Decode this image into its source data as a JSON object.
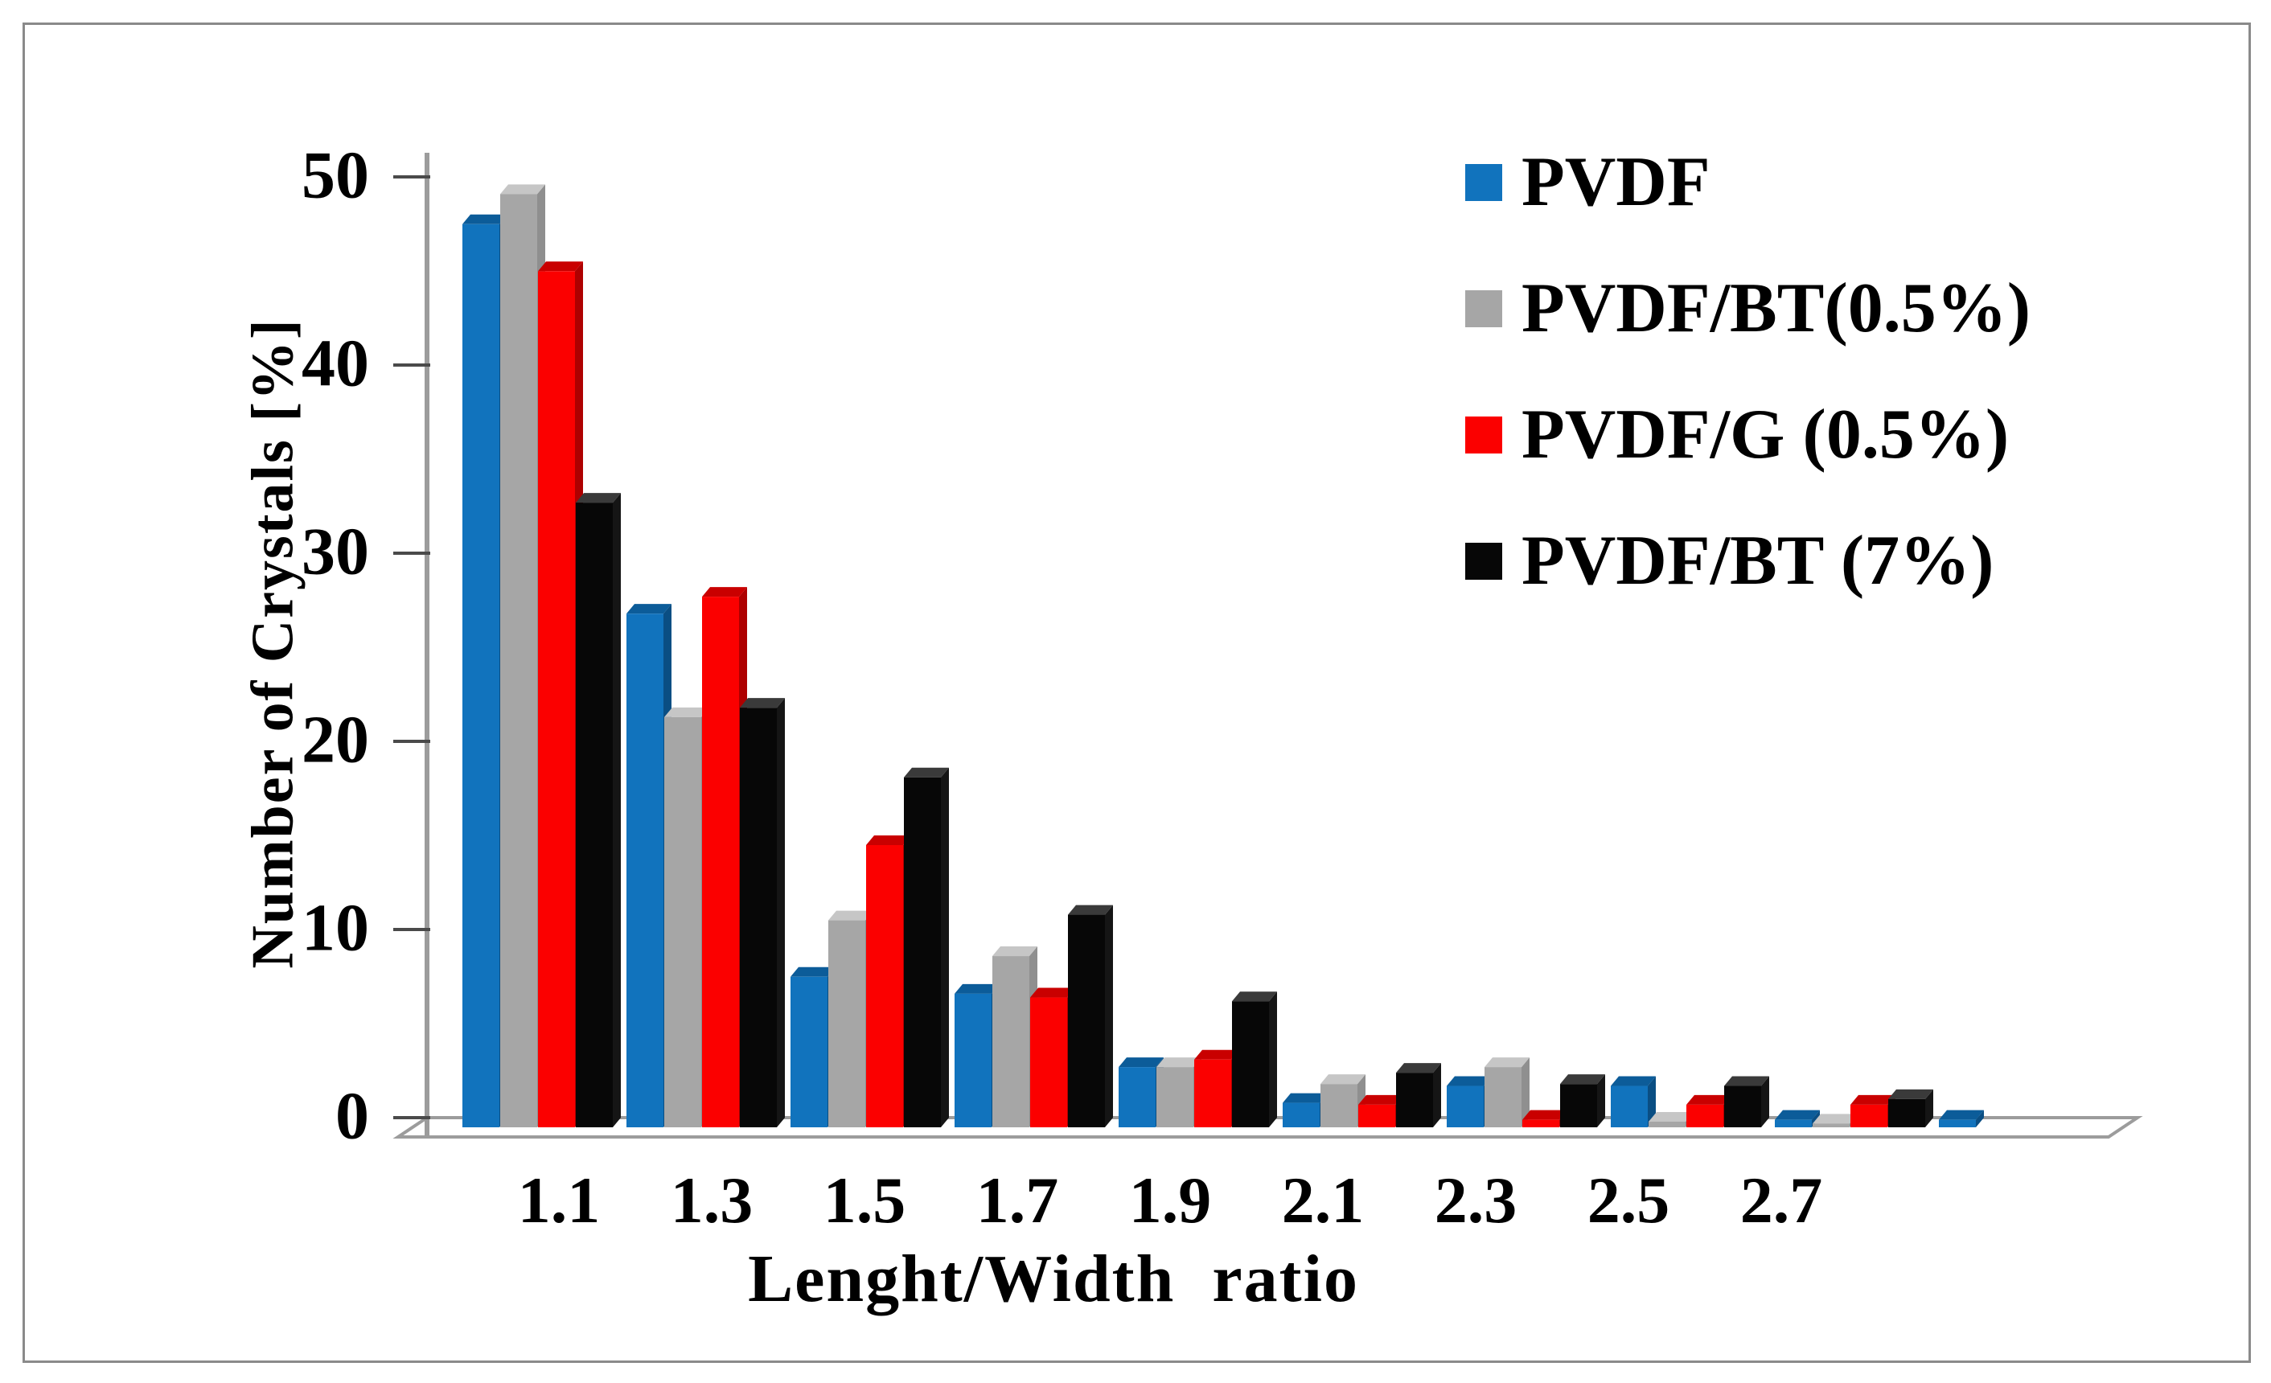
{
  "figure": {
    "y_axis_title": "Number of Crystals [%]",
    "x_axis_title": "Lenght/Width  ratio"
  },
  "chart_data": {
    "type": "bar",
    "title": "",
    "xlabel": "Lenght/Width  ratio",
    "ylabel": "Number of Crystals [%]",
    "categories": [
      "1.1",
      "1.3",
      "1.5",
      "1.7",
      "1.9",
      "2.1",
      "2.3",
      "2.5",
      "2.7",
      ""
    ],
    "ylim": [
      0,
      50
    ],
    "yticks": [
      0,
      10,
      20,
      30,
      40,
      50
    ],
    "grid": false,
    "legend_position": "top-right",
    "style": "3d-column",
    "axis_color": "#9c9c9c",
    "tick_color": "#4a4a4a",
    "series": [
      {
        "name": "PVDF",
        "color": "#1173BD",
        "cap_color": "#0C5C99",
        "side_color": "#0A4E83",
        "values": [
          48.0,
          27.3,
          8.0,
          7.1,
          3.2,
          1.3,
          2.2,
          2.2,
          0.4,
          0.4
        ]
      },
      {
        "name": "PVDF/BT(0.5%)",
        "color": "#A6A6A6",
        "cap_color": "#C6C6C6",
        "side_color": "#8F8F8F",
        "values": [
          49.6,
          21.8,
          11.0,
          9.1,
          3.2,
          2.3,
          3.2,
          0.3,
          0.2,
          0
        ]
      },
      {
        "name": "PVDF/G (0.5%)",
        "color": "#FB0000",
        "cap_color": "#C90000",
        "side_color": "#AE0000",
        "values": [
          45.5,
          28.2,
          15.0,
          6.9,
          3.6,
          1.2,
          0.4,
          1.2,
          1.2,
          0
        ]
      },
      {
        "name": "PVDF/BT (7%)",
        "color": "#070707",
        "cap_color": "#3A3A3A",
        "side_color": "#151515",
        "values": [
          33.2,
          22.3,
          18.6,
          11.3,
          6.7,
          2.9,
          2.3,
          2.2,
          1.5,
          0
        ]
      }
    ]
  }
}
